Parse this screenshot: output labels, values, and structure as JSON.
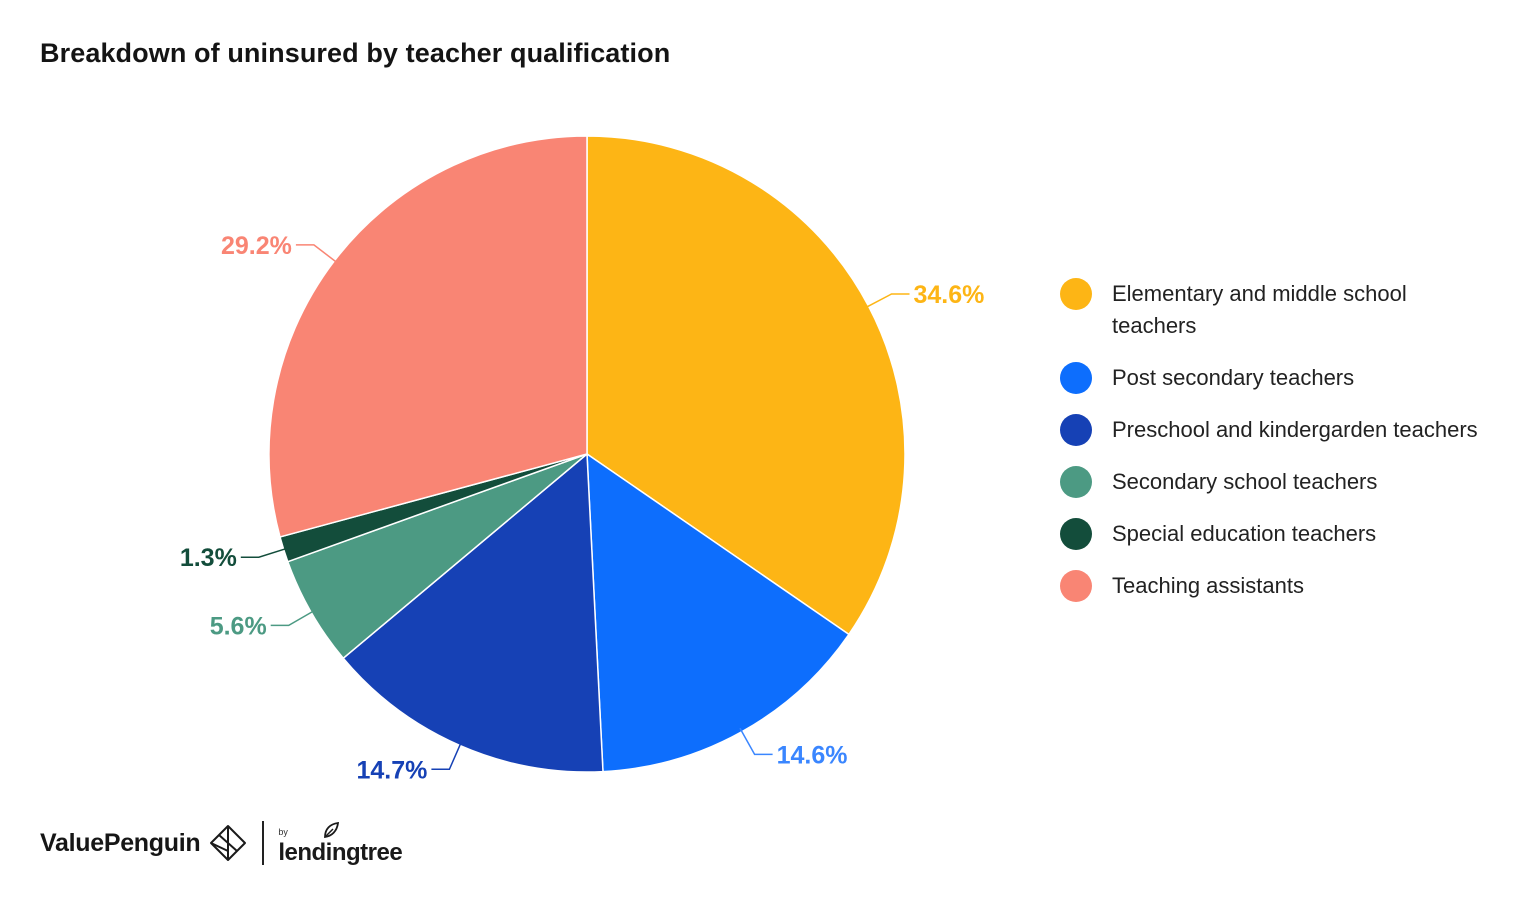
{
  "chart_data": {
    "type": "pie",
    "title": "Breakdown of uninsured by teacher qualification",
    "slices": [
      {
        "label": "Elementary and middle school teachers",
        "value": 34.6,
        "display": "34.6%",
        "color": "#FDB515"
      },
      {
        "label": "Post secondary teachers",
        "value": 14.6,
        "display": "14.6%",
        "color": "#0D6EFD"
      },
      {
        "label": "Preschool and kindergarden teachers",
        "value": 14.7,
        "display": "14.7%",
        "color": "#1641B5"
      },
      {
        "label": "Secondary school teachers",
        "value": 5.6,
        "display": "5.6%",
        "color": "#4C9A83"
      },
      {
        "label": "Special education teachers",
        "value": 1.3,
        "display": "1.3%",
        "color": "#134D3B"
      },
      {
        "label": "Teaching assistants",
        "value": 29.2,
        "display": "29.2%",
        "color": "#F98574"
      }
    ],
    "label_colors": [
      "#FDB515",
      "#3A86FF",
      "#1641B5",
      "#4C9A83",
      "#134D3B",
      "#F98574"
    ],
    "legend_position": "right"
  },
  "footer": {
    "brand": "ValuePenguin",
    "by": "by",
    "partner": "lendingtree"
  }
}
